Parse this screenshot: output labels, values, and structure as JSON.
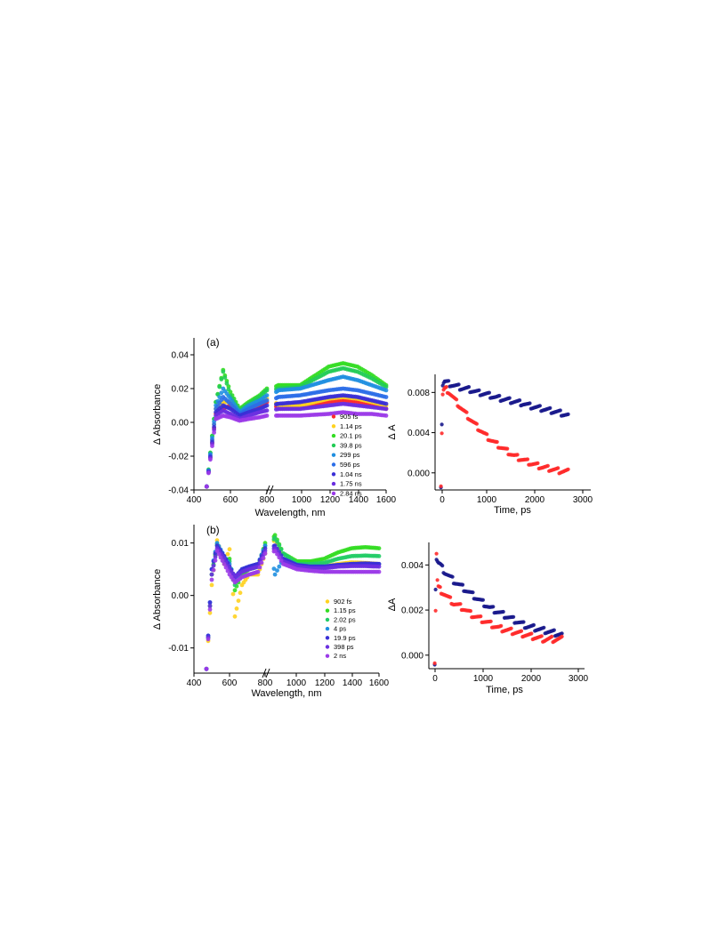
{
  "chart_data": [
    {
      "type": "line",
      "id": "a-spectra",
      "panel_label": "(a)",
      "xlabel": "Wavelength, nm",
      "ylabel": "Δ Absorbance",
      "xticks": [
        "400",
        "600",
        "800",
        "1000",
        "1200",
        "1400",
        "1600"
      ],
      "yticks": [
        "0.04",
        "0.02",
        "0.00",
        "-0.02",
        "-0.04"
      ],
      "ylim": [
        -0.04,
        0.05
      ],
      "x_break": [
        800,
        830
      ],
      "series": [
        {
          "name": "905 fs",
          "color": "#ff2b2b",
          "x": [
            470,
            520,
            560,
            600,
            650,
            700,
            760,
            800,
            850,
            1000,
            1200,
            1300,
            1400,
            1500,
            1600
          ],
          "y": [
            -0.038,
            0.005,
            0.008,
            0.01,
            0.005,
            0.008,
            0.01,
            0.012,
            0.008,
            0.009,
            0.012,
            0.013,
            0.012,
            0.01,
            0.008
          ]
        },
        {
          "name": "1.14 ps",
          "color": "#ffd21f",
          "x": [
            470,
            520,
            560,
            600,
            650,
            700,
            760,
            800,
            850,
            1000,
            1200,
            1300,
            1400,
            1500,
            1600
          ],
          "y": [
            -0.038,
            0.008,
            0.012,
            0.012,
            0.006,
            0.009,
            0.012,
            0.014,
            0.01,
            0.01,
            0.014,
            0.015,
            0.014,
            0.012,
            0.01
          ]
        },
        {
          "name": "20.1 ps",
          "color": "#33dd22",
          "x": [
            470,
            520,
            560,
            600,
            650,
            700,
            760,
            800,
            850,
            1000,
            1200,
            1300,
            1400,
            1500,
            1600
          ],
          "y": [
            -0.038,
            0.012,
            0.031,
            0.018,
            0.008,
            0.012,
            0.016,
            0.02,
            0.022,
            0.022,
            0.033,
            0.035,
            0.033,
            0.028,
            0.022
          ]
        },
        {
          "name": "39.8 ps",
          "color": "#22cc55",
          "x": [
            470,
            520,
            560,
            600,
            650,
            700,
            760,
            800,
            850,
            1000,
            1200,
            1300,
            1400,
            1500,
            1600
          ],
          "y": [
            -0.038,
            0.012,
            0.03,
            0.016,
            0.007,
            0.011,
            0.015,
            0.019,
            0.02,
            0.021,
            0.03,
            0.032,
            0.03,
            0.026,
            0.021
          ]
        },
        {
          "name": "299 ps",
          "color": "#1f8fe0",
          "x": [
            470,
            520,
            560,
            600,
            650,
            700,
            760,
            800,
            850,
            1000,
            1200,
            1300,
            1400,
            1500,
            1600
          ],
          "y": [
            -0.038,
            0.01,
            0.02,
            0.014,
            0.006,
            0.01,
            0.013,
            0.016,
            0.019,
            0.02,
            0.025,
            0.027,
            0.025,
            0.022,
            0.019
          ]
        },
        {
          "name": "596 ps",
          "color": "#2b6ee8",
          "x": [
            470,
            520,
            560,
            600,
            650,
            700,
            760,
            800,
            850,
            1000,
            1200,
            1300,
            1400,
            1500,
            1600
          ],
          "y": [
            -0.038,
            0.008,
            0.015,
            0.011,
            0.005,
            0.008,
            0.011,
            0.013,
            0.015,
            0.016,
            0.019,
            0.02,
            0.019,
            0.017,
            0.015
          ]
        },
        {
          "name": "1.04 ns",
          "color": "#3a2fd6",
          "x": [
            470,
            520,
            560,
            600,
            650,
            700,
            760,
            800,
            850,
            1000,
            1200,
            1300,
            1400,
            1500,
            1600
          ],
          "y": [
            -0.038,
            0.006,
            0.01,
            0.008,
            0.004,
            0.006,
            0.008,
            0.01,
            0.011,
            0.012,
            0.015,
            0.016,
            0.015,
            0.013,
            0.011
          ]
        },
        {
          "name": "1.75 ns",
          "color": "#6a2fe0",
          "x": [
            470,
            520,
            560,
            600,
            650,
            700,
            760,
            800,
            850,
            1000,
            1200,
            1300,
            1400,
            1500,
            1600
          ],
          "y": [
            -0.038,
            0.004,
            0.007,
            0.005,
            0.002,
            0.004,
            0.006,
            0.007,
            0.008,
            0.008,
            0.01,
            0.011,
            0.01,
            0.009,
            0.008
          ]
        },
        {
          "name": "2.84 ns",
          "color": "#9b3ae8",
          "x": [
            470,
            520,
            560,
            600,
            650,
            700,
            760,
            800,
            850,
            1000,
            1200,
            1300,
            1400,
            1500,
            1600
          ],
          "y": [
            -0.038,
            0.002,
            0.004,
            0.003,
            0.001,
            0.002,
            0.003,
            0.004,
            0.004,
            0.004,
            0.005,
            0.006,
            0.005,
            0.005,
            0.004
          ]
        }
      ]
    },
    {
      "type": "scatter",
      "id": "a-kinetics",
      "xlabel": "Time, ps",
      "ylabel": "Δ A",
      "xticks": [
        "0",
        "1000",
        "2000",
        "3000"
      ],
      "yticks": [
        "0.008",
        "0.004",
        "0.000"
      ],
      "xlim": [
        -150,
        3300
      ],
      "ylim": [
        -0.0017,
        0.0098
      ],
      "series": [
        {
          "color": "#1a1a8c",
          "x": [
            -20,
            0,
            20,
            40,
            60,
            100,
            200,
            400,
            600,
            800,
            1000,
            1200,
            1400,
            1600,
            1800,
            2000,
            2200,
            2400,
            2600,
            2800
          ],
          "y": [
            -0.0012,
            0.005,
            0.0088,
            0.009,
            0.0091,
            0.009,
            0.0088,
            0.0085,
            0.0083,
            0.008,
            0.0078,
            0.0075,
            0.0073,
            0.0071,
            0.0069,
            0.0066,
            0.0064,
            0.0062,
            0.006,
            0.0057
          ]
        },
        {
          "color": "#ff2b2b",
          "x": [
            -20,
            0,
            20,
            40,
            60,
            100,
            150,
            200,
            300,
            400,
            600,
            800,
            1000,
            1200,
            1400,
            1600,
            1800,
            2000,
            2200,
            2400,
            2600,
            2800
          ],
          "y": [
            -0.0012,
            0.004,
            0.0078,
            0.0082,
            0.0083,
            0.0083,
            0.0081,
            0.0078,
            0.0072,
            0.0066,
            0.0055,
            0.0045,
            0.0036,
            0.0029,
            0.0023,
            0.0017,
            0.0013,
            0.0009,
            0.0006,
            0.0004,
            0.0002,
            0.0001
          ]
        }
      ]
    },
    {
      "type": "line",
      "id": "b-spectra",
      "panel_label": "(b)",
      "xlabel": "Wavelength, nm",
      "ylabel": "Δ Absorbance",
      "xticks": [
        "400",
        "600",
        "800",
        "1000",
        "1200",
        "1400",
        "1600"
      ],
      "yticks": [
        "0.01",
        "0.00",
        "-0.01"
      ],
      "ylim": [
        -0.0148,
        0.0135
      ],
      "x_break": [
        800,
        830
      ],
      "series": [
        {
          "name": "902 fs",
          "color": "#ffd21f",
          "x": [
            470,
            500,
            530,
            570,
            600,
            630,
            670,
            710,
            760,
            800,
            840,
            900,
            1000,
            1100,
            1200,
            1300,
            1400,
            1500,
            1600
          ],
          "y": [
            -0.014,
            0.002,
            0.0105,
            0.006,
            0.0088,
            -0.004,
            0.002,
            0.004,
            0.004,
            0.008,
            0.011,
            0.007,
            0.006,
            0.0055,
            0.0055,
            0.006,
            0.0063,
            0.0062,
            0.006
          ]
        },
        {
          "name": "1.15 ps",
          "color": "#33dd22",
          "x": [
            470,
            500,
            530,
            570,
            600,
            630,
            670,
            710,
            760,
            800,
            840,
            900,
            1000,
            1100,
            1200,
            1300,
            1400,
            1500,
            1600
          ],
          "y": [
            -0.014,
            0.004,
            0.0098,
            0.0065,
            0.007,
            0.001,
            0.004,
            0.005,
            0.0055,
            0.01,
            0.0115,
            0.008,
            0.0065,
            0.0065,
            0.007,
            0.0082,
            0.009,
            0.0092,
            0.009
          ]
        },
        {
          "name": "2.02 ps",
          "color": "#22cc66",
          "x": [
            470,
            500,
            530,
            570,
            600,
            630,
            670,
            710,
            760,
            800,
            840,
            900,
            1000,
            1100,
            1200,
            1300,
            1400,
            1500,
            1600
          ],
          "y": [
            -0.014,
            0.004,
            0.0095,
            0.0065,
            0.0065,
            0.002,
            0.0045,
            0.005,
            0.0055,
            0.0095,
            0.011,
            0.008,
            0.006,
            0.006,
            0.0062,
            0.007,
            0.0075,
            0.0076,
            0.0075
          ]
        },
        {
          "name": "4 ps",
          "color": "#1f8fe0",
          "x": [
            470,
            500,
            530,
            570,
            600,
            630,
            670,
            710,
            760,
            800,
            840,
            900,
            1000,
            1100,
            1200,
            1300,
            1400,
            1500,
            1600
          ],
          "y": [
            -0.014,
            0.005,
            0.01,
            0.0075,
            0.006,
            0.003,
            0.005,
            0.0055,
            0.006,
            0.0095,
            0.004,
            0.007,
            0.0058,
            0.0055,
            0.0055,
            0.0058,
            0.006,
            0.006,
            0.006
          ]
        },
        {
          "name": "19.9 ps",
          "color": "#3a2fd6",
          "x": [
            470,
            500,
            530,
            570,
            600,
            630,
            670,
            710,
            760,
            800,
            840,
            900,
            1000,
            1100,
            1200,
            1300,
            1400,
            1500,
            1600
          ],
          "y": [
            -0.014,
            0.005,
            0.0095,
            0.0075,
            0.0055,
            0.0035,
            0.005,
            0.0055,
            0.006,
            0.009,
            0.0095,
            0.007,
            0.0058,
            0.0055,
            0.0055,
            0.0058,
            0.006,
            0.0061,
            0.006
          ]
        },
        {
          "name": "398 ps",
          "color": "#6a2fe0",
          "x": [
            470,
            500,
            530,
            570,
            600,
            630,
            670,
            710,
            760,
            800,
            840,
            900,
            1000,
            1100,
            1200,
            1300,
            1400,
            1500,
            1600
          ],
          "y": [
            -0.014,
            0.004,
            0.009,
            0.007,
            0.005,
            0.0035,
            0.0045,
            0.005,
            0.0055,
            0.0085,
            0.009,
            0.0065,
            0.0055,
            0.0052,
            0.0052,
            0.0055,
            0.0056,
            0.0056,
            0.0055
          ]
        },
        {
          "name": "2 ns",
          "color": "#9b3ae8",
          "x": [
            470,
            500,
            530,
            570,
            600,
            630,
            670,
            710,
            760,
            800,
            840,
            900,
            1000,
            1100,
            1200,
            1300,
            1400,
            1500,
            1600
          ],
          "y": [
            -0.014,
            0.003,
            0.0085,
            0.006,
            0.004,
            0.0025,
            0.0035,
            0.004,
            0.0045,
            0.008,
            0.0085,
            0.006,
            0.005,
            0.0047,
            0.0045,
            0.0045,
            0.0045,
            0.0045,
            0.0045
          ]
        }
      ]
    },
    {
      "type": "scatter",
      "id": "b-kinetics",
      "xlabel": "Time, ps",
      "ylabel": "ΔA",
      "xticks": [
        "0",
        "1000",
        "2000",
        "3000"
      ],
      "yticks": [
        "0.004",
        "0.002",
        "0.000"
      ],
      "xlim": [
        -150,
        3300
      ],
      "ylim": [
        -0.0006,
        0.005
      ],
      "series": [
        {
          "color": "#1a1a8c",
          "x": [
            -20,
            0,
            20,
            40,
            60,
            100,
            200,
            300,
            400,
            600,
            800,
            1000,
            1200,
            1400,
            1600,
            1800,
            2000,
            2200,
            2400,
            2600,
            2800
          ],
          "y": [
            -0.0003,
            0.003,
            0.0043,
            0.0042,
            0.0041,
            0.004,
            0.0037,
            0.0035,
            0.0033,
            0.003,
            0.0027,
            0.0024,
            0.0021,
            0.0019,
            0.0017,
            0.0015,
            0.0013,
            0.0012,
            0.0011,
            0.001,
            0.0009
          ]
        },
        {
          "color": "#ff2b2b",
          "x": [
            -20,
            0,
            20,
            40,
            60,
            100,
            200,
            300,
            400,
            600,
            800,
            1000,
            1200,
            1400,
            1600,
            1800,
            2000,
            2200,
            2400,
            2600,
            2800
          ],
          "y": [
            -0.0003,
            0.002,
            0.0045,
            0.0033,
            0.003,
            0.0029,
            0.0027,
            0.0025,
            0.0023,
            0.0021,
            0.0018,
            0.0016,
            0.0014,
            0.0012,
            0.0011,
            0.001,
            0.0009,
            0.0008,
            0.0007,
            0.0007,
            0.0007
          ]
        }
      ]
    }
  ]
}
